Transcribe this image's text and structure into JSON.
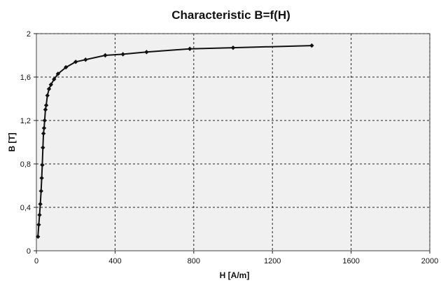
{
  "chart_data": {
    "type": "line",
    "title": "Characteristic B=f(H)",
    "xlabel": "H [A/m]",
    "ylabel": "B [T]",
    "xlim": [
      0,
      2000
    ],
    "ylim": [
      0,
      2
    ],
    "x_ticks": [
      0,
      400,
      800,
      1200,
      1600,
      2000
    ],
    "x_tick_labels": [
      "0",
      "400",
      "800",
      "1200",
      "1600",
      "2000"
    ],
    "y_ticks": [
      0,
      0.4,
      0.8,
      1.2,
      1.6,
      2
    ],
    "y_tick_labels": [
      "0",
      "0,4",
      "0,8",
      "1,2",
      "1,6",
      "2"
    ],
    "grid": true,
    "legend": "none",
    "series": [
      {
        "color": "#111111",
        "marker": "diamond",
        "x": [
          8,
          12,
          16,
          20,
          24,
          27,
          30,
          33,
          36,
          39,
          42,
          46,
          50,
          56,
          64,
          74,
          90,
          110,
          150,
          200,
          250,
          350,
          440,
          560,
          780,
          1000,
          1400
        ],
        "y": [
          0.13,
          0.24,
          0.33,
          0.43,
          0.55,
          0.67,
          0.79,
          0.95,
          1.08,
          1.13,
          1.2,
          1.3,
          1.34,
          1.43,
          1.49,
          1.53,
          1.58,
          1.63,
          1.69,
          1.74,
          1.76,
          1.8,
          1.81,
          1.83,
          1.86,
          1.87,
          1.89
        ]
      }
    ]
  }
}
